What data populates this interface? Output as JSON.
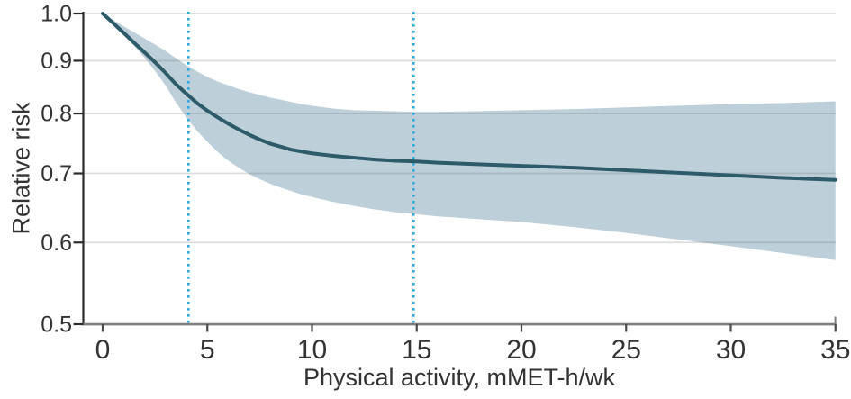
{
  "chart_data": {
    "type": "line",
    "title": "",
    "xlabel": "Physical activity, mMET-h/wk",
    "ylabel": "Relative risk",
    "x_scale": "linear",
    "y_scale": "log",
    "xlim": [
      0,
      35
    ],
    "ylim": [
      0.5,
      1.0
    ],
    "grid": "horizontal",
    "legend": "none",
    "x_ticks": {
      "values": [
        0,
        5,
        10,
        15,
        20,
        25,
        30,
        35
      ],
      "labels": [
        "0",
        "5",
        "10",
        "15",
        "20",
        "25",
        "30",
        "35"
      ]
    },
    "y_ticks": {
      "values": [
        1.0,
        0.9,
        0.8,
        0.7,
        0.6,
        0.5
      ],
      "labels": [
        "1.0",
        "0.9",
        "0.8",
        "0.7",
        "0.6",
        "0.5"
      ]
    },
    "gridline_values": [
      1.0,
      0.9,
      0.8,
      0.7,
      0.6
    ],
    "reference_lines_x": [
      4.1,
      14.85
    ],
    "series": [
      {
        "name": "relative-risk-curve",
        "x": [
          0,
          0.5,
          1,
          1.5,
          2,
          2.5,
          3,
          3.5,
          4,
          4.5,
          5,
          5.5,
          6,
          6.5,
          7,
          7.5,
          8,
          8.5,
          9,
          9.5,
          10,
          11,
          12,
          13,
          14,
          15,
          16,
          17.5,
          20,
          22.5,
          25,
          27.5,
          30,
          32.5,
          35
        ],
        "y": [
          1.0,
          0.979,
          0.958,
          0.937,
          0.917,
          0.897,
          0.876,
          0.854,
          0.836,
          0.819,
          0.805,
          0.793,
          0.782,
          0.772,
          0.763,
          0.755,
          0.748,
          0.743,
          0.738,
          0.735,
          0.732,
          0.728,
          0.725,
          0.722,
          0.72,
          0.719,
          0.717,
          0.715,
          0.712,
          0.709,
          0.705,
          0.701,
          0.697,
          0.693,
          0.69
        ]
      }
    ],
    "band": {
      "name": "confidence-band",
      "x": [
        0,
        0.5,
        1,
        1.5,
        2,
        2.5,
        3,
        3.5,
        4,
        4.5,
        5,
        5.5,
        6,
        6.5,
        7,
        7.5,
        8,
        8.5,
        9,
        9.5,
        10,
        11,
        12,
        13,
        14,
        15,
        16,
        17.5,
        20,
        22.5,
        25,
        27.5,
        30,
        32.5,
        35
      ],
      "upper": [
        1.0,
        0.986,
        0.972,
        0.959,
        0.946,
        0.933,
        0.92,
        0.905,
        0.891,
        0.879,
        0.868,
        0.859,
        0.852,
        0.845,
        0.839,
        0.834,
        0.829,
        0.825,
        0.821,
        0.817,
        0.814,
        0.809,
        0.806,
        0.805,
        0.804,
        0.803,
        0.803,
        0.804,
        0.806,
        0.808,
        0.811,
        0.814,
        0.817,
        0.819,
        0.822
      ],
      "lower": [
        1.0,
        0.978,
        0.955,
        0.931,
        0.906,
        0.88,
        0.852,
        0.82,
        0.793,
        0.77,
        0.751,
        0.734,
        0.72,
        0.709,
        0.699,
        0.691,
        0.684,
        0.678,
        0.673,
        0.668,
        0.664,
        0.657,
        0.651,
        0.646,
        0.642,
        0.639,
        0.636,
        0.633,
        0.628,
        0.621,
        0.613,
        0.604,
        0.595,
        0.586,
        0.577
      ]
    },
    "colors": {
      "curve": "#2E5B69",
      "band": "#BDCFD9",
      "reference_line": "#2AA8E0",
      "gridline": "#E5E7E8",
      "axis_y": "#2B2B2B",
      "axis_x": "#7E7E7E",
      "tick_x": "#4B4B4B",
      "text": "#333333"
    }
  }
}
